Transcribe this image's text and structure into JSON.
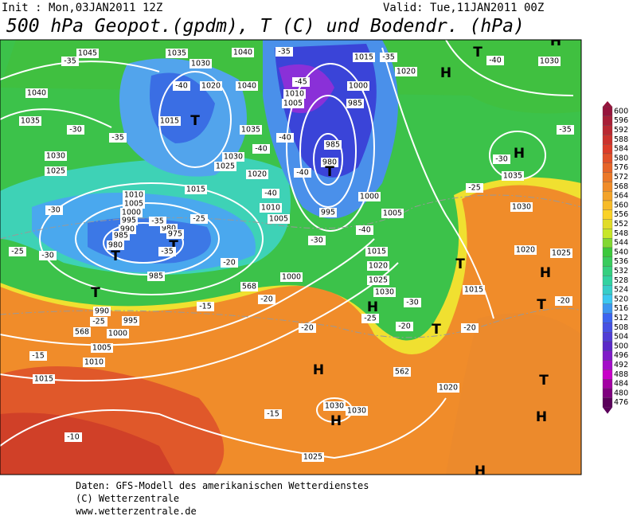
{
  "header": {
    "init": "Init : Mon,03JAN2011 12Z",
    "valid": "Valid: Tue,11JAN2011 00Z",
    "title": "500 hPa Geopot.(gpdm), T (C) und Bodendr. (hPa)"
  },
  "colorbar": {
    "levels": [
      600,
      596,
      592,
      588,
      584,
      580,
      576,
      572,
      568,
      564,
      560,
      556,
      552,
      548,
      544,
      540,
      536,
      532,
      528,
      524,
      520,
      516,
      512,
      508,
      504,
      500,
      496,
      492,
      488,
      484,
      480,
      476
    ]
  },
  "map": {
    "labels": [
      "1045",
      "1035",
      "1040",
      "-35",
      "1015",
      "-35",
      "T",
      "-40",
      "1030",
      "-35",
      "1030",
      "1020",
      "H",
      "1040",
      "-40",
      "1020",
      "1040",
      "-45",
      "1000",
      "1010",
      "1005",
      "985",
      "1035",
      "1015",
      "T",
      "-30",
      "1035",
      "-35",
      "-35",
      "-40",
      "985",
      "1030",
      "-40",
      "1030",
      "H",
      "-30",
      "980",
      "T",
      "1025",
      "1025",
      "1020",
      "-40",
      "1035",
      "1015",
      "1010",
      "-40",
      "1000",
      "-25",
      "1005",
      "1010",
      "995",
      "-30",
      "1000",
      "1005",
      "1005",
      "1030",
      "-25",
      "995",
      "980",
      "975",
      "-35",
      "990",
      "-40",
      "985",
      "980",
      "T",
      "T",
      "-35",
      "-30",
      "-25",
      "-30",
      "1015",
      "1020",
      "1025",
      "T",
      "-20",
      "1020",
      "H",
      "985",
      "1000",
      "1025",
      "T",
      "568",
      "1030",
      "1015",
      "-30",
      "-20",
      "H",
      "T",
      "-20",
      "-15",
      "990",
      "-25",
      "-25",
      "995",
      "-20",
      "T",
      "-20",
      "-20",
      "1000",
      "568",
      "1005",
      "-15",
      "1010",
      "562",
      "H",
      "1015",
      "T",
      "1020",
      "1030",
      "1030",
      "H",
      "-15",
      "H",
      "-10",
      "1025",
      "H",
      "H"
    ]
  },
  "footer": {
    "source": "Daten: GFS-Modell des amerikanischen Wetterdienstes",
    "copyright": "(C) Wetterzentrale",
    "url": "www.wetterzentrale.de"
  }
}
